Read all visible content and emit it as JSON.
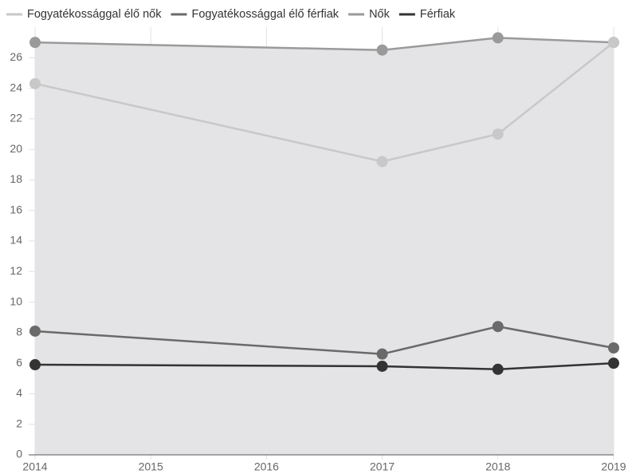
{
  "chart_data": {
    "type": "line",
    "x": [
      2014,
      2017,
      2018,
      2019
    ],
    "series": [
      {
        "name": "Fogyatékossággal élő nők",
        "color": "#c8c8c8",
        "fill": "#cbcbcd",
        "values": [
          24.3,
          19.2,
          21.0,
          27.0
        ]
      },
      {
        "name": "Fogyatékossággal élő férfiak",
        "color": "#6a6a6a",
        "values": [
          8.1,
          6.6,
          8.4,
          7.0
        ]
      },
      {
        "name": "Nők",
        "color": "#9a9a9a",
        "fill": "#e4e4e6",
        "values": [
          27.0,
          26.5,
          27.3,
          27.0
        ]
      },
      {
        "name": "Férfiak",
        "color": "#333333",
        "values": [
          5.9,
          5.8,
          5.6,
          6.0
        ]
      }
    ],
    "xlim": [
      2014,
      2019
    ],
    "xticks": [
      2014,
      2015,
      2016,
      2017,
      2018,
      2019
    ],
    "ylim": [
      0,
      28
    ],
    "yticks": [
      0,
      2,
      4,
      6,
      8,
      10,
      12,
      14,
      16,
      18,
      20,
      22,
      24,
      26
    ],
    "grid": true
  }
}
